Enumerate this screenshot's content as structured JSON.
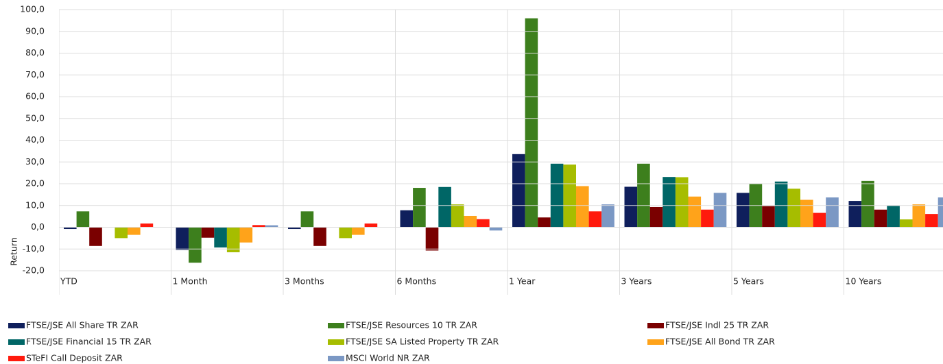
{
  "chart_data": {
    "type": "bar",
    "y_label": "Return",
    "categories": [
      "YTD",
      "1 Month",
      "3 Months",
      "6 Months",
      "1 Year",
      "3 Years",
      "5 Years",
      "10 Years"
    ],
    "series": [
      {
        "name": "FTSE/JSE All Share TR ZAR",
        "color": "#0f1f5c",
        "values": [
          -0.8,
          -10.5,
          -0.8,
          7.8,
          33.6,
          18.6,
          15.8,
          12.1
        ]
      },
      {
        "name": "FTSE/JSE Resources 10 TR ZAR",
        "color": "#3d7f1d",
        "values": [
          7.3,
          -16.3,
          7.3,
          18.1,
          96.0,
          29.2,
          19.9,
          21.3
        ]
      },
      {
        "name": "FTSE/JSE Indl 25 TR ZAR",
        "color": "#7a0000",
        "values": [
          -8.6,
          -4.8,
          -8.6,
          -10.7,
          4.5,
          9.3,
          9.7,
          8.1
        ]
      },
      {
        "name": "FTSE/JSE Financial 15 TR ZAR",
        "color": "#006666",
        "values": [
          null,
          -9.3,
          null,
          18.5,
          29.2,
          23.1,
          21.0,
          9.8
        ]
      },
      {
        "name": "FTSE/JSE SA Listed Property TR ZAR",
        "color": "#a6bd00",
        "values": [
          -5.0,
          -11.5,
          -5.0,
          10.5,
          28.8,
          23.0,
          17.7,
          3.6
        ]
      },
      {
        "name": "FTSE/JSE All Bond TR ZAR",
        "color": "#ffa31a",
        "values": [
          -3.5,
          -7.0,
          -3.5,
          5.2,
          18.9,
          14.1,
          12.6,
          10.5
        ]
      },
      {
        "name": "STeFI Call Deposit ZAR",
        "color": "#ff1a0d",
        "values": [
          1.7,
          1.0,
          1.7,
          3.7,
          7.3,
          8.1,
          6.6,
          6.1
        ]
      },
      {
        "name": "MSCI World NR ZAR",
        "color": "#7b98c4",
        "values": [
          null,
          0.9,
          null,
          -1.5,
          10.5,
          15.8,
          13.7,
          13.7
        ]
      }
    ],
    "ylim": [
      -20,
      100
    ],
    "yticks": [
      {
        "value": -20,
        "label": "-20,0"
      },
      {
        "value": -10,
        "label": "-10,0"
      },
      {
        "value": 0,
        "label": "0,0"
      },
      {
        "value": 10,
        "label": "10,0"
      },
      {
        "value": 20,
        "label": "20,0"
      },
      {
        "value": 30,
        "label": "30,0"
      },
      {
        "value": 40,
        "label": "40,0"
      },
      {
        "value": 50,
        "label": "50,0"
      },
      {
        "value": 60,
        "label": "60,0"
      },
      {
        "value": 70,
        "label": "70,0"
      },
      {
        "value": 80,
        "label": "80,0"
      },
      {
        "value": 90,
        "label": "90,0"
      },
      {
        "value": 100,
        "label": "100,0"
      }
    ],
    "grid": true,
    "legend": "bottom"
  }
}
